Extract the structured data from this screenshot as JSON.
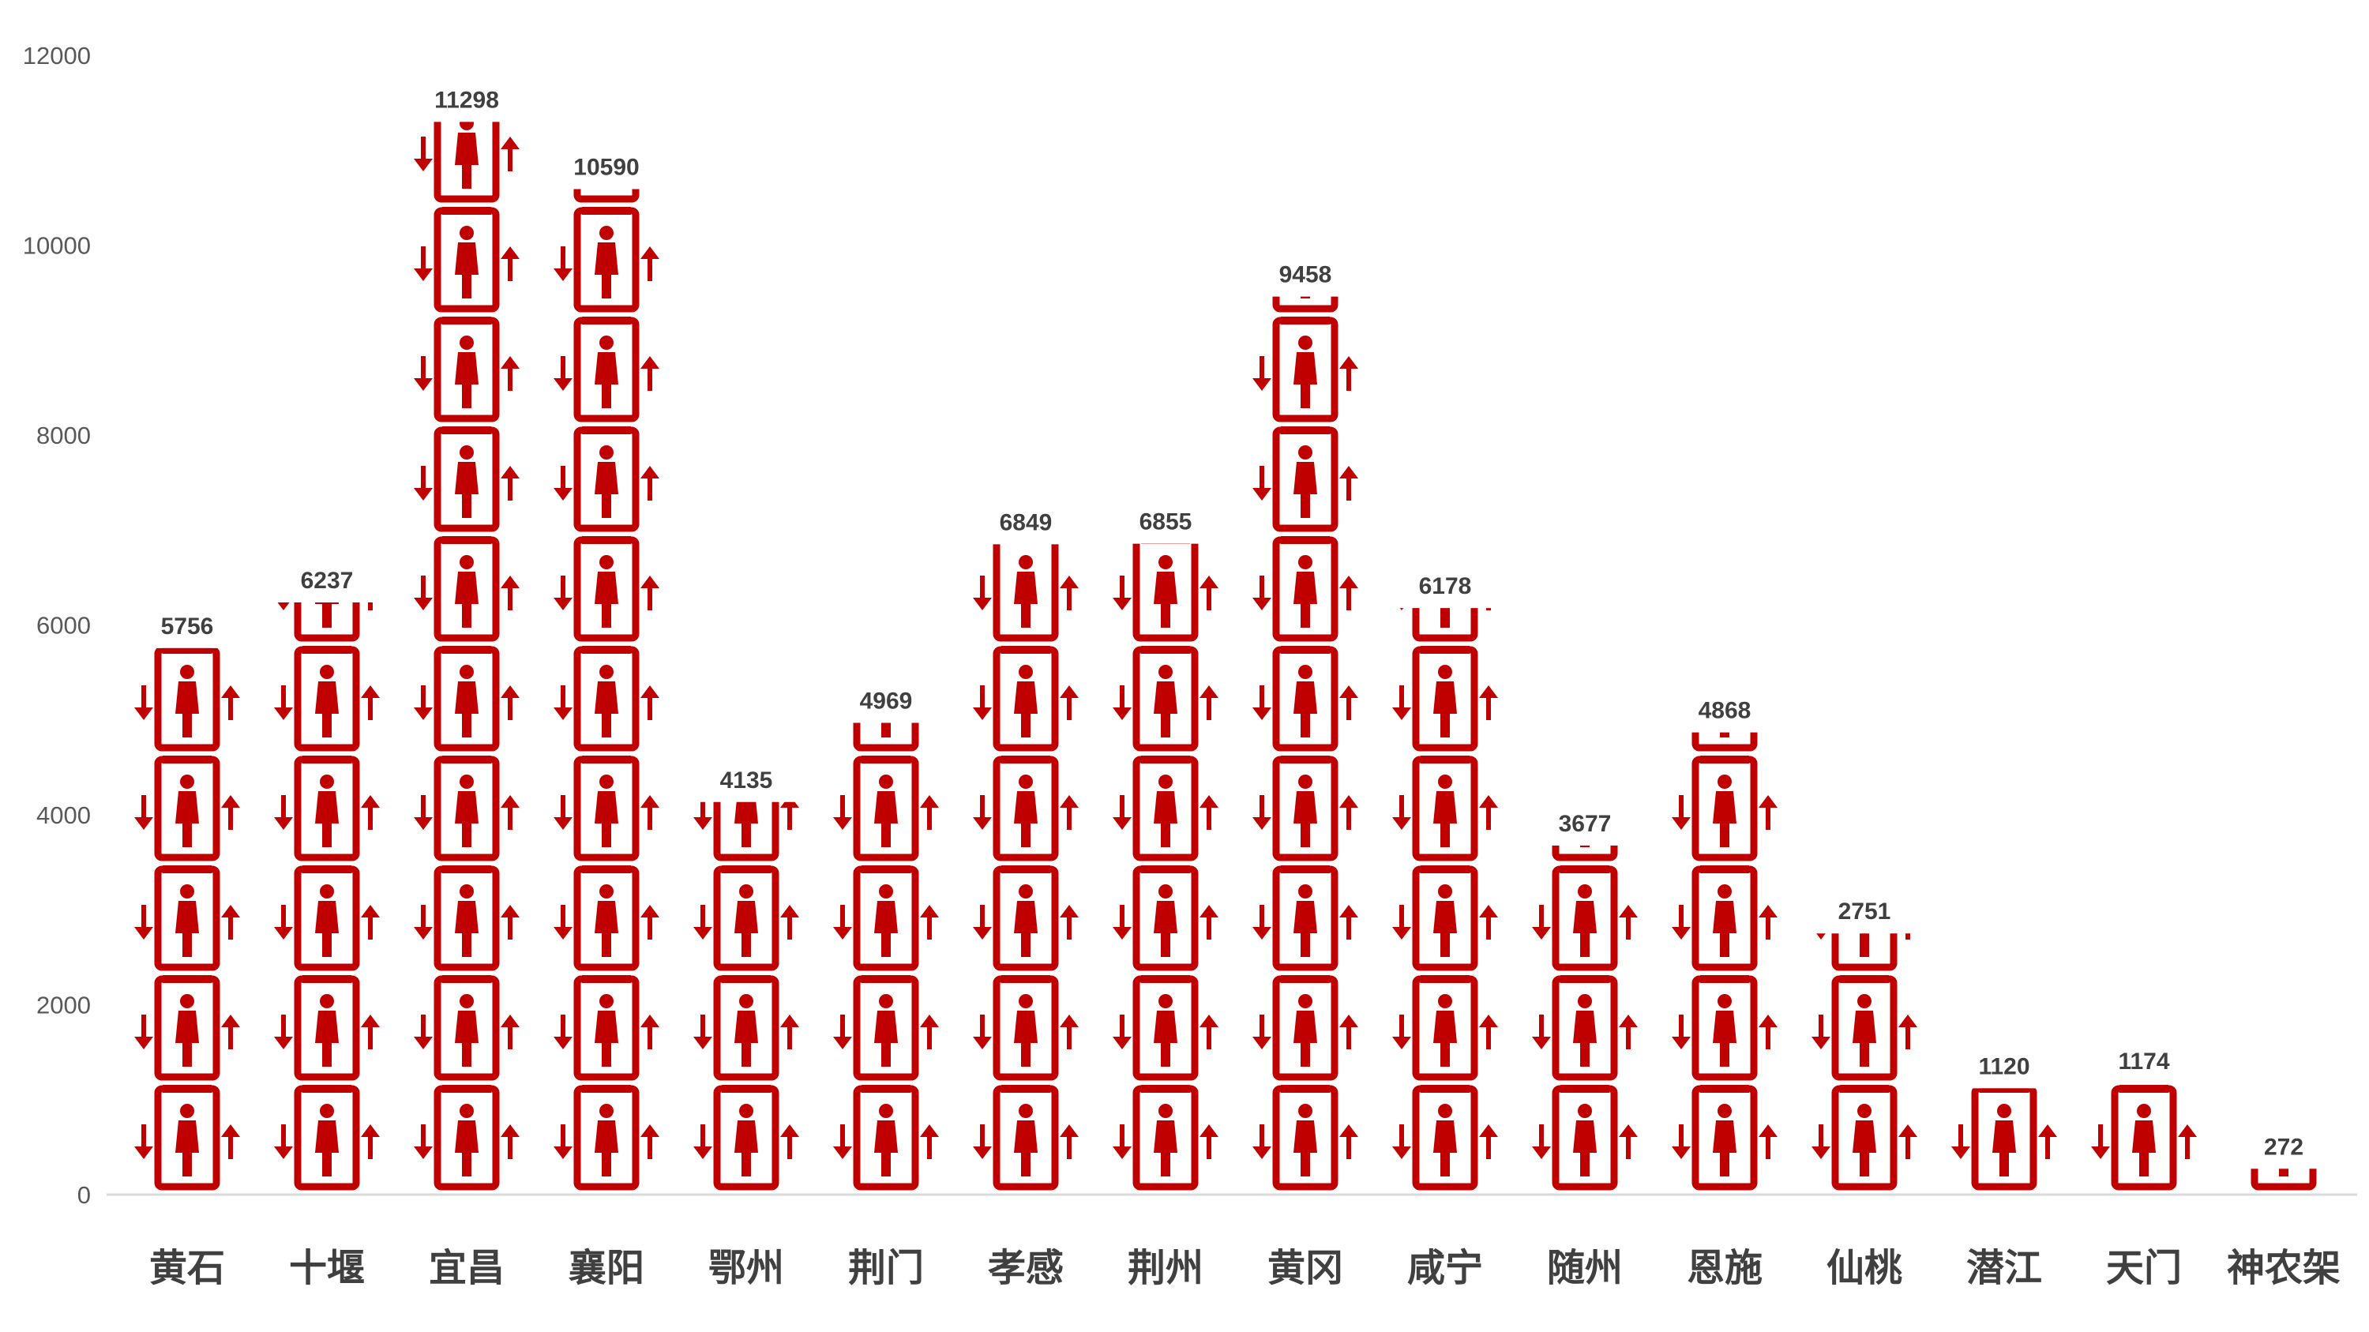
{
  "chart_data": {
    "type": "bar",
    "title": "",
    "xlabel": "",
    "ylabel": "",
    "ylim": [
      0,
      12000
    ],
    "yticks": [
      "0",
      "2000",
      "4000",
      "6000",
      "8000",
      "10000",
      "12000"
    ],
    "grid": false,
    "legend": "none",
    "categories": [
      "黄石",
      "十堰",
      "宜昌",
      "襄阳",
      "鄂州",
      "荆门",
      "孝感",
      "荆州",
      "黄冈",
      "咸宁",
      "随州",
      "恩施",
      "仙桃",
      "潜江",
      "天门",
      "神农架"
    ],
    "values": [
      5756,
      6237,
      11298,
      10590,
      4135,
      4969,
      6849,
      6855,
      9458,
      6178,
      3677,
      4868,
      2751,
      1120,
      1174,
      272
    ],
    "data_labels": [
      "5756",
      "6237",
      "11298",
      "10590",
      "4135",
      "4969",
      "6849",
      "6855",
      "9458",
      "6178",
      "3677",
      "4868",
      "2751",
      "1120",
      "1174",
      "272"
    ],
    "unit_per_icon": 1160,
    "mark_icon": "elevator-person-icon",
    "colors": {
      "mark": "#C00000",
      "axis": "#D9D9D9",
      "tick_text": "#595959",
      "label_text": "#404040"
    }
  }
}
